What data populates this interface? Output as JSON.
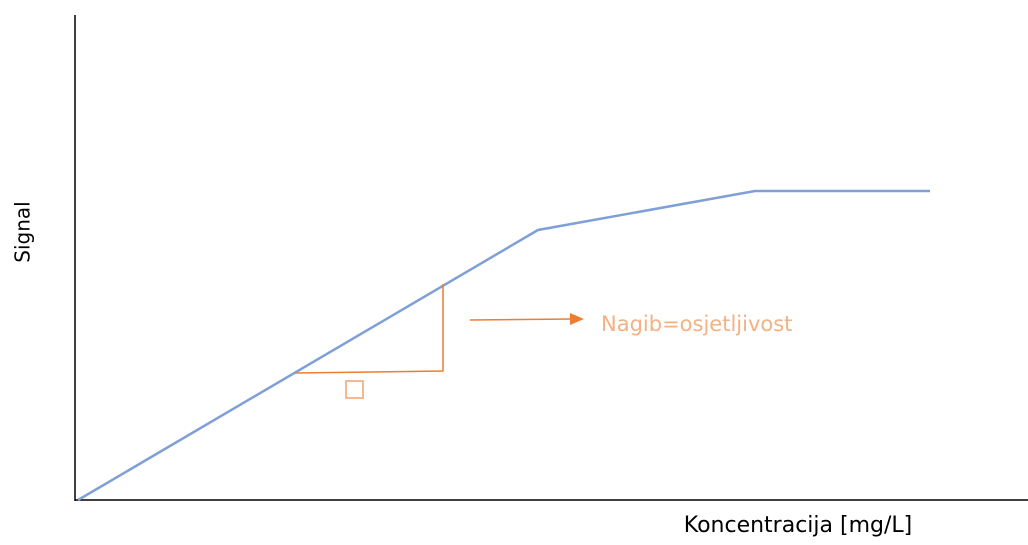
{
  "axes": {
    "y_label": "Signal",
    "x_label": "Koncentracija [mg/L]"
  },
  "annotation": {
    "text": "Nagib=osjetljivost"
  }
}
